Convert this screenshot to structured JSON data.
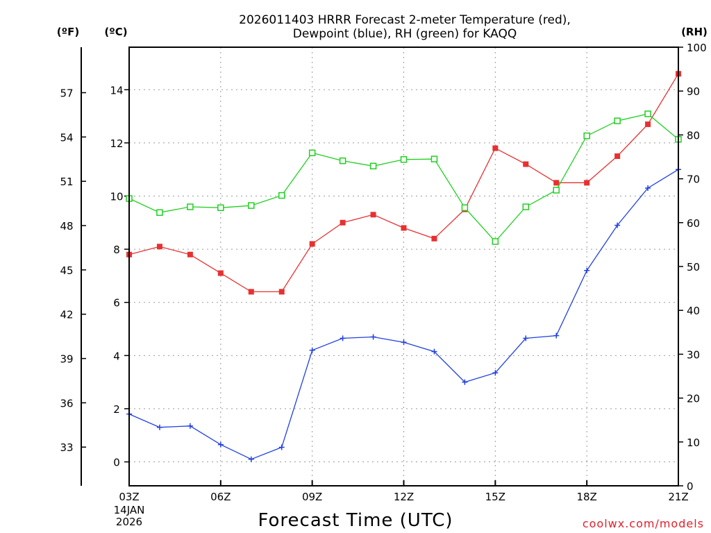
{
  "chart_data": {
    "type": "line",
    "title_line1": "2026011403 HRRR Forecast 2-meter Temperature (red),",
    "title_line2": "Dewpoint (blue), RH (green) for KAQQ",
    "xlabel": "Forecast Time (UTC)",
    "credit": "coolwx.com/models",
    "unit_f": "(ºF)",
    "unit_c": "(ºC)",
    "unit_rh": "(RH)",
    "date_label_line1": "14JAN",
    "date_label_line2": "2026",
    "x_tick_labels": [
      "03Z",
      "06Z",
      "09Z",
      "12Z",
      "15Z",
      "18Z",
      "21Z"
    ],
    "x_hours": [
      3,
      4,
      5,
      6,
      7,
      8,
      9,
      10,
      11,
      12,
      13,
      14,
      15,
      16,
      17,
      18,
      19,
      20,
      21
    ],
    "xlim": [
      3,
      21
    ],
    "celsius_axis": {
      "lim": [
        -0.9,
        15.6
      ],
      "ticks": [
        0,
        2,
        4,
        6,
        8,
        10,
        12,
        14
      ]
    },
    "fahrenheit_axis": {
      "ticks": [
        33,
        36,
        39,
        42,
        45,
        48,
        51,
        54,
        57
      ]
    },
    "rh_axis": {
      "lim": [
        0,
        100
      ],
      "ticks": [
        0,
        10,
        20,
        30,
        40,
        50,
        60,
        70,
        80,
        90,
        100
      ]
    },
    "series": [
      {
        "name": "Temperature",
        "unit": "C",
        "color": "#e83030",
        "marker": "filled-square",
        "values": [
          7.8,
          8.1,
          7.8,
          7.1,
          6.4,
          6.4,
          8.2,
          9.0,
          9.3,
          8.8,
          8.4,
          9.5,
          11.8,
          11.2,
          10.5,
          10.5,
          11.5,
          12.7,
          14.6
        ]
      },
      {
        "name": "Dewpoint",
        "unit": "C",
        "color": "#2040e0",
        "marker": "plus",
        "values": [
          1.8,
          1.3,
          1.35,
          0.65,
          0.1,
          0.55,
          4.2,
          4.65,
          4.7,
          4.5,
          4.15,
          3.0,
          3.35,
          4.65,
          4.75,
          7.2,
          8.9,
          10.3,
          11.0
        ]
      },
      {
        "name": "RH",
        "unit": "%",
        "color": "#20d020",
        "marker": "open-square",
        "values": [
          65.5,
          62.3,
          63.6,
          63.4,
          63.9,
          66.2,
          75.9,
          74.1,
          72.9,
          74.4,
          74.5,
          63.4,
          55.7,
          63.6,
          67.4,
          79.8,
          83.2,
          84.8,
          79.0
        ]
      }
    ]
  }
}
